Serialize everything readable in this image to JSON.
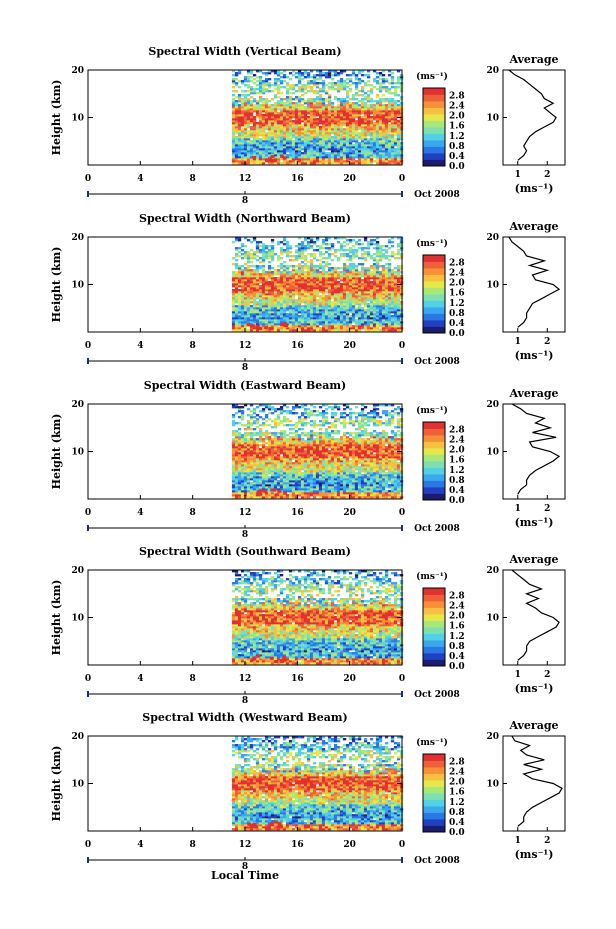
{
  "figure": {
    "x_axis_title": "Local Time",
    "date_label": "Oct 2008",
    "day_marker": "8",
    "unit_label": "(ms⁻¹)",
    "height_label": "Height (km)",
    "average_title": "Average"
  },
  "colorbar": {
    "ticks": [
      "2.8",
      "2.4",
      "2.0",
      "1.6",
      "1.2",
      "0.8",
      "0.4",
      "0.0"
    ],
    "colors": [
      "#1c1c6e",
      "#2040c0",
      "#2a78e6",
      "#3aa8ee",
      "#52d0e6",
      "#7ee0b0",
      "#a8e878",
      "#e6e84a",
      "#f8c040",
      "#f89038",
      "#ee6038",
      "#e03030"
    ]
  },
  "chart_data": [
    {
      "type": "heatmap",
      "title": "Spectral Width (Vertical Beam)",
      "xlabel": "Local Time",
      "ylabel": "Height (km)",
      "x_ticks": [
        "0",
        "4",
        "8",
        "12",
        "16",
        "20",
        "0"
      ],
      "y_ticks": [
        "20",
        "10"
      ],
      "xlim": [
        0,
        24
      ],
      "ylim": [
        0,
        20
      ],
      "data_start_hour": 11,
      "colorbar": {
        "label": "(ms⁻¹)",
        "ticks": [
          2.8,
          2.4,
          2.0,
          1.6,
          1.2,
          0.8,
          0.4,
          0.0
        ]
      },
      "average_profile": {
        "title": "Average",
        "xlabel": "(ms⁻¹)",
        "x_ticks": [
          "1",
          "2"
        ],
        "xlim": [
          0.5,
          2.6
        ],
        "heights": [
          1,
          2,
          3,
          4,
          5,
          6,
          7,
          8,
          9,
          10,
          11,
          12,
          13,
          14,
          15,
          16,
          17,
          18,
          19,
          20
        ],
        "values": [
          1.0,
          1.2,
          1.3,
          1.2,
          1.3,
          1.4,
          1.6,
          1.9,
          2.2,
          2.3,
          2.1,
          1.9,
          2.2,
          1.9,
          1.8,
          1.6,
          1.4,
          1.2,
          0.9,
          0.7
        ]
      }
    },
    {
      "type": "heatmap",
      "title": "Spectral Width (Northward Beam)",
      "xlabel": "Local Time",
      "ylabel": "Height (km)",
      "x_ticks": [
        "0",
        "4",
        "8",
        "12",
        "16",
        "20",
        "0"
      ],
      "y_ticks": [
        "20",
        "10"
      ],
      "xlim": [
        0,
        24
      ],
      "ylim": [
        0,
        20
      ],
      "data_start_hour": 11,
      "colorbar": {
        "label": "(ms⁻¹)",
        "ticks": [
          2.8,
          2.4,
          2.0,
          1.6,
          1.2,
          0.8,
          0.4,
          0.0
        ]
      },
      "average_profile": {
        "title": "Average",
        "xlabel": "(ms⁻¹)",
        "x_ticks": [
          "1",
          "2"
        ],
        "xlim": [
          0.5,
          2.6
        ],
        "heights": [
          1,
          2,
          3,
          4,
          5,
          6,
          7,
          8,
          9,
          10,
          11,
          12,
          13,
          14,
          15,
          16,
          17,
          18,
          19,
          20
        ],
        "values": [
          1.0,
          1.2,
          1.3,
          1.3,
          1.4,
          1.5,
          1.8,
          2.1,
          2.4,
          2.2,
          1.6,
          1.5,
          2.0,
          1.4,
          1.9,
          1.3,
          1.2,
          1.0,
          0.8,
          0.7
        ]
      }
    },
    {
      "type": "heatmap",
      "title": "Spectral Width (Eastward Beam)",
      "xlabel": "Local Time",
      "ylabel": "Height (km)",
      "x_ticks": [
        "0",
        "4",
        "8",
        "12",
        "16",
        "20",
        "0"
      ],
      "y_ticks": [
        "20",
        "10"
      ],
      "xlim": [
        0,
        24
      ],
      "ylim": [
        0,
        20
      ],
      "data_start_hour": 11,
      "colorbar": {
        "label": "(ms⁻¹)",
        "ticks": [
          2.8,
          2.4,
          2.0,
          1.6,
          1.2,
          0.8,
          0.4,
          0.0
        ]
      },
      "average_profile": {
        "title": "Average",
        "xlabel": "(ms⁻¹)",
        "x_ticks": [
          "1",
          "2"
        ],
        "xlim": [
          0.5,
          2.6
        ],
        "heights": [
          1,
          2,
          3,
          4,
          5,
          6,
          7,
          8,
          9,
          10,
          11,
          12,
          13,
          14,
          15,
          16,
          17,
          18,
          19,
          20
        ],
        "values": [
          1.0,
          1.1,
          1.3,
          1.3,
          1.4,
          1.6,
          1.9,
          2.2,
          2.4,
          2.1,
          1.5,
          1.4,
          2.3,
          1.5,
          2.1,
          1.6,
          1.9,
          1.3,
          1.1,
          0.8
        ]
      }
    },
    {
      "type": "heatmap",
      "title": "Spectral Width (Southward Beam)",
      "xlabel": "Local Time",
      "ylabel": "Height (km)",
      "x_ticks": [
        "0",
        "4",
        "8",
        "12",
        "16",
        "20",
        "0"
      ],
      "y_ticks": [
        "20",
        "10"
      ],
      "xlim": [
        0,
        24
      ],
      "ylim": [
        0,
        20
      ],
      "data_start_hour": 11,
      "colorbar": {
        "label": "(ms⁻¹)",
        "ticks": [
          2.8,
          2.4,
          2.0,
          1.6,
          1.2,
          0.8,
          0.4,
          0.0
        ]
      },
      "average_profile": {
        "title": "Average",
        "xlabel": "(ms⁻¹)",
        "x_ticks": [
          "1",
          "2"
        ],
        "xlim": [
          0.5,
          2.6
        ],
        "heights": [
          1,
          2,
          3,
          4,
          5,
          6,
          7,
          8,
          9,
          10,
          11,
          12,
          13,
          14,
          15,
          16,
          17,
          18,
          19,
          20
        ],
        "values": [
          1.0,
          1.2,
          1.3,
          1.3,
          1.4,
          1.7,
          2.0,
          2.3,
          2.4,
          2.2,
          1.8,
          1.6,
          1.3,
          1.7,
          1.3,
          1.8,
          1.4,
          1.2,
          1.0,
          0.8
        ]
      }
    },
    {
      "type": "heatmap",
      "title": "Spectral Width (Westward Beam)",
      "xlabel": "Local Time",
      "ylabel": "Height (km)",
      "x_ticks": [
        "0",
        "4",
        "8",
        "12",
        "16",
        "20",
        "0"
      ],
      "y_ticks": [
        "20",
        "10"
      ],
      "xlim": [
        0,
        24
      ],
      "ylim": [
        0,
        20
      ],
      "data_start_hour": 11,
      "colorbar": {
        "label": "(ms⁻¹)",
        "ticks": [
          2.8,
          2.4,
          2.0,
          1.6,
          1.2,
          0.8,
          0.4,
          0.0
        ]
      },
      "average_profile": {
        "title": "Average",
        "xlabel": "(ms⁻¹)",
        "x_ticks": [
          "1",
          "2"
        ],
        "xlim": [
          0.5,
          2.6
        ],
        "heights": [
          1,
          2,
          3,
          4,
          5,
          6,
          7,
          8,
          9,
          10,
          11,
          12,
          13,
          14,
          15,
          16,
          17,
          18,
          19,
          20
        ],
        "values": [
          1.0,
          1.2,
          1.2,
          1.3,
          1.5,
          1.8,
          2.1,
          2.4,
          2.5,
          2.2,
          1.5,
          1.2,
          1.8,
          1.2,
          1.9,
          1.3,
          1.1,
          1.4,
          0.9,
          0.8
        ]
      }
    }
  ]
}
